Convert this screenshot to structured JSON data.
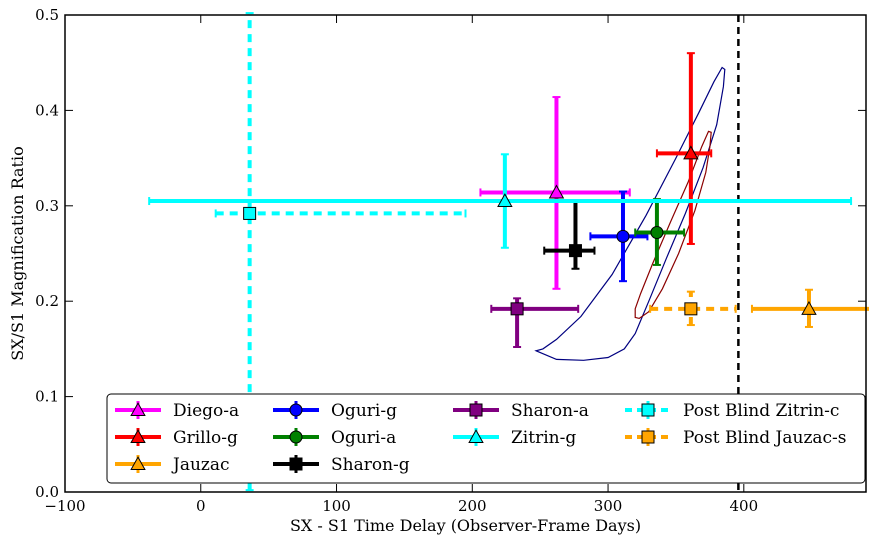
{
  "chart_data": {
    "type": "scatter",
    "title": "",
    "xlabel": "SX - S1 Time Delay (Observer-Frame Days)",
    "ylabel": "SX/S1 Magnification Ratio",
    "xlim": [
      -100,
      490
    ],
    "ylim": [
      0.0,
      0.5
    ],
    "x_ticks": [
      -100,
      0,
      100,
      200,
      300,
      400
    ],
    "x_tick_labels": [
      "−100",
      "0",
      "100",
      "200",
      "300",
      "400"
    ],
    "y_ticks": [
      0.0,
      0.1,
      0.2,
      0.3,
      0.4,
      0.5
    ],
    "y_tick_labels": [
      "0.0",
      "0.1",
      "0.2",
      "0.3",
      "0.4",
      "0.5"
    ],
    "grid": false,
    "legend_position": "bottom",
    "reference_line": {
      "x": 396,
      "style": "dashed",
      "color": "#000000"
    },
    "contours": [
      {
        "name": "outer",
        "color": "#000080",
        "points": [
          [
            247,
            0.148
          ],
          [
            262,
            0.139
          ],
          [
            282,
            0.138
          ],
          [
            300,
            0.141
          ],
          [
            312,
            0.15
          ],
          [
            320,
            0.166
          ],
          [
            330,
            0.2
          ],
          [
            343,
            0.245
          ],
          [
            357,
            0.292
          ],
          [
            370,
            0.34
          ],
          [
            380,
            0.385
          ],
          [
            385,
            0.425
          ],
          [
            386,
            0.443
          ],
          [
            384,
            0.445
          ],
          [
            378,
            0.43
          ],
          [
            367,
            0.398
          ],
          [
            350,
            0.35
          ],
          [
            328,
            0.29
          ],
          [
            303,
            0.228
          ],
          [
            280,
            0.184
          ],
          [
            262,
            0.16
          ],
          [
            252,
            0.15
          ],
          [
            247,
            0.148
          ]
        ]
      },
      {
        "name": "inner",
        "color": "#8b0000",
        "points": [
          [
            320,
            0.183
          ],
          [
            323,
            0.182
          ],
          [
            330,
            0.189
          ],
          [
            340,
            0.213
          ],
          [
            352,
            0.25
          ],
          [
            364,
            0.295
          ],
          [
            372,
            0.335
          ],
          [
            375,
            0.362
          ],
          [
            376,
            0.377
          ],
          [
            374,
            0.378
          ],
          [
            369,
            0.362
          ],
          [
            359,
            0.325
          ],
          [
            346,
            0.283
          ],
          [
            333,
            0.24
          ],
          [
            324,
            0.208
          ],
          [
            320,
            0.192
          ],
          [
            320,
            0.183
          ]
        ]
      }
    ],
    "series": [
      {
        "name": "Diego-a",
        "color": "#ff00ff",
        "marker": "triangle",
        "line_style": "solid",
        "x": 262,
        "y": 0.314,
        "xerr": [
          56,
          54
        ],
        "yerr": [
          0.101,
          0.1
        ]
      },
      {
        "name": "Grillo-g",
        "color": "#ff0000",
        "marker": "triangle",
        "line_style": "solid",
        "x": 361,
        "y": 0.355,
        "xerr": [
          25,
          15
        ],
        "yerr": [
          0.095,
          0.105
        ]
      },
      {
        "name": "Jauzac",
        "color": "#ffa500",
        "marker": "triangle",
        "line_style": "solid",
        "x": 448,
        "y": 0.192,
        "xerr": [
          42,
          45
        ],
        "yerr": [
          0.019,
          0.02
        ]
      },
      {
        "name": "Oguri-g",
        "color": "#0000ff",
        "marker": "circle",
        "line_style": "solid",
        "x": 311,
        "y": 0.268,
        "xerr": [
          24,
          18
        ],
        "yerr": [
          0.047,
          0.047
        ]
      },
      {
        "name": "Oguri-a",
        "color": "#008000",
        "marker": "circle",
        "line_style": "solid",
        "x": 336,
        "y": 0.272,
        "xerr": [
          16,
          20
        ],
        "yerr": [
          0.034,
          0.035
        ]
      },
      {
        "name": "Sharon-g",
        "color": "#000000",
        "marker": "square",
        "line_style": "solid",
        "x": 276,
        "y": 0.253,
        "xerr": [
          23,
          14
        ],
        "yerr": [
          0.019,
          0.051
        ]
      },
      {
        "name": "Sharon-a",
        "color": "#800080",
        "marker": "square",
        "line_style": "solid",
        "x": 233,
        "y": 0.192,
        "xerr": [
          19,
          45
        ],
        "yerr": [
          0.04,
          0.011
        ]
      },
      {
        "name": "Zitrin-g",
        "color": "#00ffff",
        "marker": "triangle",
        "line_style": "solid",
        "x": 224,
        "y": 0.305,
        "xerr": [
          262,
          255
        ],
        "yerr": [
          0.049,
          0.049
        ]
      },
      {
        "name": "Post Blind Zitrin-c",
        "color": "#00ffff",
        "marker": "square",
        "line_style": "dashed",
        "x": 36,
        "y": 0.292,
        "xerr": [
          25,
          159
        ],
        "yerr": [
          0.29,
          0.21
        ]
      },
      {
        "name": "Post Blind Jauzac-s",
        "color": "#ffa500",
        "marker": "square",
        "line_style": "dashed",
        "x": 361,
        "y": 0.192,
        "xerr": [
          30,
          33
        ],
        "yerr": [
          0.017,
          0.018
        ]
      }
    ],
    "legend_order": [
      [
        "Diego-a",
        "Grillo-g",
        "Jauzac"
      ],
      [
        "Oguri-g",
        "Oguri-a",
        "Sharon-g"
      ],
      [
        "Sharon-a",
        "Zitrin-g"
      ],
      [
        "Post Blind Zitrin-c",
        "Post Blind Jauzac-s"
      ]
    ]
  }
}
